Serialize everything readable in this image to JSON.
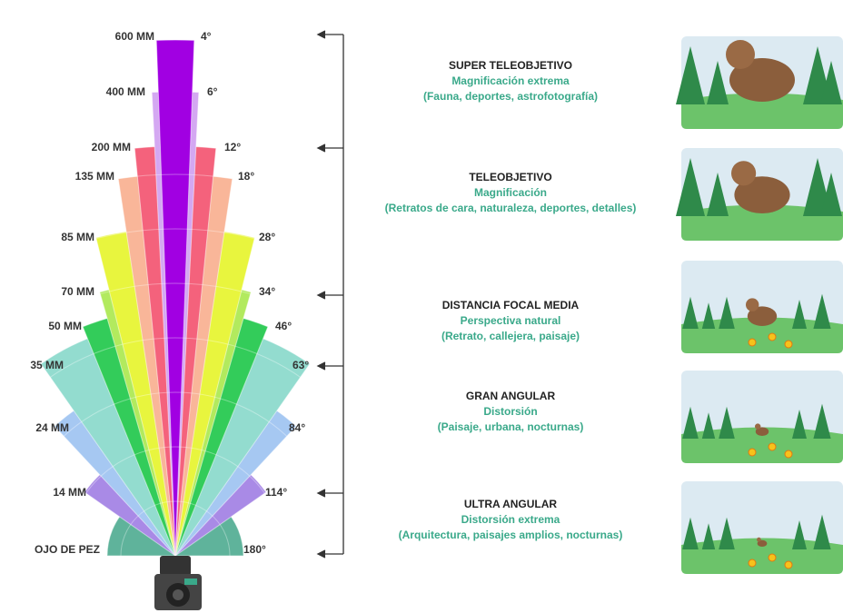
{
  "focal_lengths": [
    {
      "label": "OJO DE PEZ",
      "angle": "180°"
    },
    {
      "label": "14 MM",
      "angle": "114°"
    },
    {
      "label": "24 MM",
      "angle": "84°"
    },
    {
      "label": "35 MM",
      "angle": "63°"
    },
    {
      "label": "50 MM",
      "angle": "46°"
    },
    {
      "label": "70 MM",
      "angle": "34°"
    },
    {
      "label": "85 MM",
      "angle": "28°"
    },
    {
      "label": "135 MM",
      "angle": "18°"
    },
    {
      "label": "200 MM",
      "angle": "12°"
    },
    {
      "label": "400 MM",
      "angle": "6°"
    },
    {
      "label": "600 MM",
      "angle": "4°"
    }
  ],
  "categories": [
    {
      "title": "SUPER TELEOBJETIVO",
      "subtitle": "Magnificación extrema",
      "examples": "(Fauna, deportes, astrofotografía)"
    },
    {
      "title": "TELEOBJETIVO",
      "subtitle": "Magnificación",
      "examples": "(Retratos de cara, naturaleza, deportes, detalles)"
    },
    {
      "title": "DISTANCIA FOCAL MEDIA",
      "subtitle": "Perspectiva natural",
      "examples": "(Retrato, callejera, paisaje)"
    },
    {
      "title": "GRAN ANGULAR",
      "subtitle": "Distorsión",
      "examples": "(Paisaje, urbana, nocturnas)"
    },
    {
      "title": "ULTRA ANGULAR",
      "subtitle": "Distorsión extrema",
      "examples": "(Arquitectura, paisajes amplios, nocturnas)"
    }
  ]
}
